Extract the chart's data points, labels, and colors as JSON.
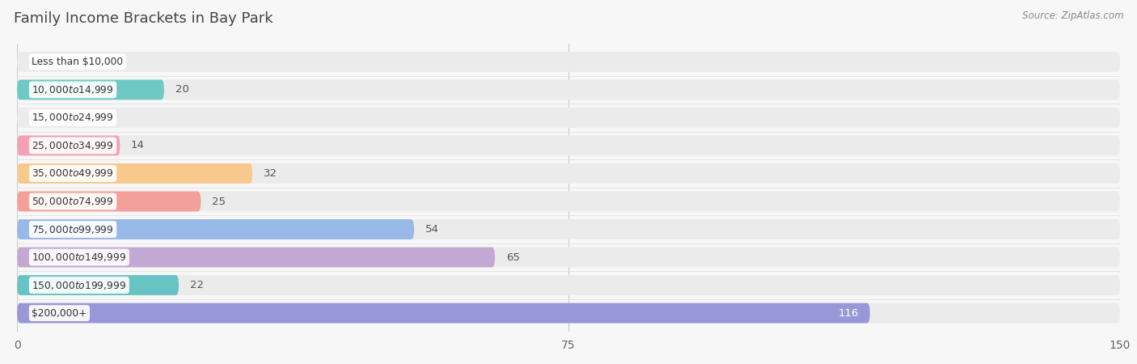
{
  "title": "Family Income Brackets in Bay Park",
  "source": "Source: ZipAtlas.com",
  "categories": [
    "Less than $10,000",
    "$10,000 to $14,999",
    "$15,000 to $24,999",
    "$25,000 to $34,999",
    "$35,000 to $49,999",
    "$50,000 to $74,999",
    "$75,000 to $99,999",
    "$100,000 to $149,999",
    "$150,000 to $199,999",
    "$200,000+"
  ],
  "values": [
    0,
    20,
    0,
    14,
    32,
    25,
    54,
    65,
    22,
    116
  ],
  "bar_colors": [
    "#c9afd4",
    "#6ec9c4",
    "#a8a8d8",
    "#f4a0b5",
    "#f8c98c",
    "#f4a09a",
    "#98b8e8",
    "#c4a8d4",
    "#68c4c4",
    "#9898d8"
  ],
  "bg_color": "#f7f7f7",
  "bar_bg_color": "#ebebeb",
  "xlim": [
    0,
    150
  ],
  "xticks": [
    0,
    75,
    150
  ],
  "label_color_inside": "#ffffff",
  "label_color_outside": "#555555",
  "title_color": "#444444",
  "title_fontsize": 13,
  "bar_height": 0.72,
  "value_inside_threshold": 110
}
